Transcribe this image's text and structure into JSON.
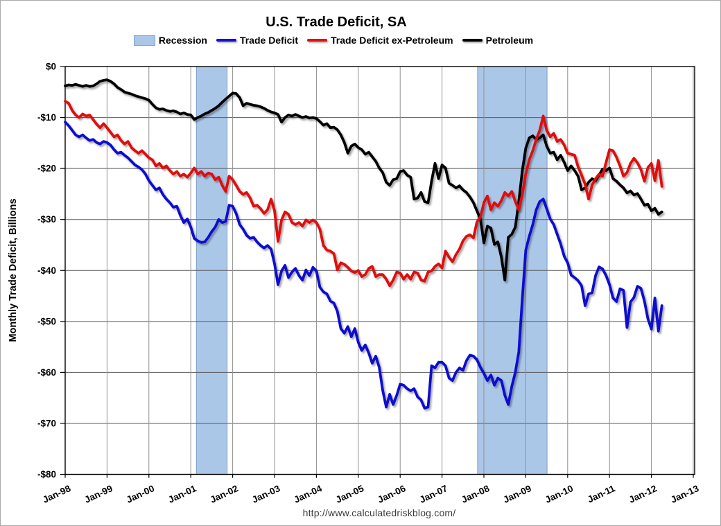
{
  "title": "U.S. Trade Deficit, SA",
  "footer_url": "http://www.calculatedriskblog.com/",
  "legend": {
    "recession": "Recession",
    "trade_deficit": "Trade Deficit",
    "ex_petroleum": "Trade Deficit ex-Petroleum",
    "petroleum": "Petroleum"
  },
  "colors": {
    "trade_deficit": "#1111cf",
    "ex_petroleum": "#e01010",
    "petroleum": "#000000",
    "recession_fill": "#abc7e8",
    "recession_edge": "#7d9ec7",
    "gridline_h": "#5a5a5a",
    "gridline_v": "#8f8f8f",
    "axis": "#000000",
    "footer_text": "#3a3a3a"
  },
  "chart_data": {
    "type": "line",
    "title": "U.S. Trade Deficit, SA",
    "xlabel": "",
    "ylabel": "Monthly Trade Deficit, Billions",
    "ylim": [
      -80,
      0
    ],
    "grid": true,
    "legend_position": "top",
    "x_unit": "monthly, Jan-1998 through Apr-2012 (index 0 = Jan-1998)",
    "x_axis_span_months": [
      0,
      180
    ],
    "x_tick_labels": [
      "Jan-98",
      "Jan-99",
      "Jan-00",
      "Jan-01",
      "Jan-02",
      "Jan-03",
      "Jan-04",
      "Jan-05",
      "Jan-06",
      "Jan-07",
      "Jan-08",
      "Jan-09",
      "Jan-10",
      "Jan-11",
      "Jan-12",
      "Jan-13"
    ],
    "y_tick_labels": [
      "$0",
      "-$10",
      "-$20",
      "-$30",
      "-$40",
      "-$50",
      "-$60",
      "-$70",
      "-$80"
    ],
    "recessions": [
      {
        "start_month": 37.6,
        "end_month": 46.4
      },
      {
        "start_month": 118.2,
        "end_month": 138.1
      }
    ],
    "series": [
      {
        "name": "Trade Deficit",
        "color": "#1111cf",
        "values": [
          -10.9,
          -11.6,
          -12.5,
          -13.4,
          -13.8,
          -13.4,
          -14.0,
          -14.5,
          -14.3,
          -14.9,
          -15.2,
          -14.7,
          -14.9,
          -15.4,
          -16.3,
          -17.0,
          -16.8,
          -17.4,
          -17.9,
          -18.6,
          -19.3,
          -19.7,
          -20.2,
          -21.1,
          -22.4,
          -23.3,
          -24.2,
          -23.8,
          -25.1,
          -26.0,
          -26.7,
          -27.6,
          -27.4,
          -29.2,
          -30.6,
          -29.9,
          -31.5,
          -33.7,
          -34.2,
          -34.5,
          -34.4,
          -33.5,
          -32.4,
          -31.5,
          -30.0,
          -30.6,
          -30.4,
          -27.2,
          -27.4,
          -28.8,
          -31.0,
          -31.9,
          -33.1,
          -33.7,
          -33.5,
          -34.4,
          -35.1,
          -35.6,
          -35.1,
          -35.8,
          -38.7,
          -42.8,
          -40.1,
          -39.0,
          -41.4,
          -40.3,
          -39.6,
          -41.0,
          -41.9,
          -39.9,
          -41.0,
          -39.4,
          -40.1,
          -43.3,
          -44.2,
          -44.6,
          -46.0,
          -46.4,
          -48.0,
          -51.4,
          -52.3,
          -51.0,
          -53.0,
          -51.4,
          -54.1,
          -55.7,
          -54.6,
          -56.2,
          -58.2,
          -56.8,
          -59.0,
          -63.5,
          -66.8,
          -64.3,
          -66.3,
          -64.5,
          -62.3,
          -62.5,
          -63.2,
          -63.6,
          -63.2,
          -64.8,
          -65.4,
          -67.0,
          -66.8,
          -58.7,
          -59.1,
          -58.0,
          -58.0,
          -58.7,
          -61.1,
          -61.6,
          -60.0,
          -59.1,
          -59.6,
          -57.7,
          -56.6,
          -56.8,
          -57.5,
          -59.0,
          -60.2,
          -61.6,
          -60.5,
          -62.5,
          -61.1,
          -61.6,
          -64.5,
          -66.3,
          -62.7,
          -60.0,
          -56.0,
          -45.5,
          -36.0,
          -33.3,
          -31.0,
          -28.1,
          -26.5,
          -26.0,
          -27.9,
          -29.9,
          -31.0,
          -32.9,
          -34.8,
          -37.2,
          -38.5,
          -40.9,
          -41.4,
          -42.0,
          -43.0,
          -46.9,
          -44.6,
          -44.4,
          -41.0,
          -39.3,
          -39.7,
          -41.0,
          -42.8,
          -45.4,
          -46.1,
          -43.6,
          -43.9,
          -51.2,
          -46.2,
          -45.3,
          -43.1,
          -43.5,
          -46.0,
          -49.5,
          -51.5,
          -45.4,
          -51.9,
          -46.9
        ]
      },
      {
        "name": "Trade Deficit ex-Petroleum",
        "color": "#e01010",
        "values": [
          -6.8,
          -7.2,
          -8.6,
          -9.5,
          -10.0,
          -9.3,
          -9.7,
          -9.5,
          -10.4,
          -11.3,
          -12.0,
          -11.2,
          -12.0,
          -12.9,
          -13.8,
          -13.4,
          -14.5,
          -15.2,
          -14.7,
          -15.9,
          -16.5,
          -17.0,
          -16.5,
          -17.2,
          -17.9,
          -18.3,
          -19.5,
          -19.0,
          -19.9,
          -19.5,
          -20.4,
          -21.1,
          -20.6,
          -21.5,
          -21.1,
          -21.7,
          -20.9,
          -19.9,
          -21.1,
          -20.6,
          -21.5,
          -20.9,
          -21.1,
          -22.2,
          -21.7,
          -23.3,
          -24.5,
          -21.5,
          -22.2,
          -23.3,
          -24.5,
          -25.1,
          -24.7,
          -25.8,
          -27.4,
          -27.2,
          -27.9,
          -28.8,
          -28.1,
          -26.0,
          -28.3,
          -34.3,
          -30.1,
          -28.5,
          -29.0,
          -30.6,
          -31.0,
          -30.6,
          -31.3,
          -30.1,
          -30.6,
          -30.1,
          -30.6,
          -31.9,
          -35.1,
          -36.0,
          -36.2,
          -36.7,
          -39.9,
          -38.5,
          -38.8,
          -39.4,
          -40.1,
          -40.4,
          -40.0,
          -41.2,
          -40.8,
          -39.6,
          -39.2,
          -41.2,
          -40.8,
          -40.8,
          -41.7,
          -43.0,
          -41.9,
          -40.3,
          -40.5,
          -41.7,
          -40.8,
          -41.7,
          -40.3,
          -40.5,
          -41.9,
          -42.1,
          -40.3,
          -40.1,
          -39.2,
          -38.7,
          -39.5,
          -36.2,
          -37.4,
          -38.3,
          -36.9,
          -35.8,
          -34.2,
          -33.3,
          -33.0,
          -33.6,
          -30.5,
          -29.5,
          -26.7,
          -25.4,
          -28.1,
          -26.7,
          -27.4,
          -26.3,
          -24.7,
          -25.4,
          -24.5,
          -26.5,
          -28.1,
          -25.1,
          -21.1,
          -18.3,
          -16.5,
          -14.3,
          -12.5,
          -9.7,
          -12.5,
          -13.8,
          -13.1,
          -14.7,
          -14.3,
          -15.4,
          -17.0,
          -17.2,
          -17.4,
          -19.7,
          -21.3,
          -23.1,
          -26.0,
          -23.3,
          -22.0,
          -21.1,
          -21.5,
          -18.8,
          -16.3,
          -16.5,
          -17.8,
          -19.5,
          -21.5,
          -20.8,
          -19.0,
          -18.0,
          -18.9,
          -20.2,
          -22.5,
          -19.8,
          -19.0,
          -22.4,
          -18.4,
          -23.5
        ]
      },
      {
        "name": "Petroleum",
        "color": "#000000",
        "values": [
          -3.8,
          -3.6,
          -3.7,
          -3.5,
          -3.7,
          -3.9,
          -3.7,
          -3.9,
          -3.8,
          -3.4,
          -2.9,
          -2.7,
          -2.6,
          -2.9,
          -3.4,
          -4.1,
          -4.5,
          -5.0,
          -5.2,
          -5.4,
          -5.7,
          -5.9,
          -6.1,
          -6.3,
          -6.6,
          -7.4,
          -8.1,
          -8.4,
          -8.3,
          -8.6,
          -8.8,
          -8.7,
          -8.9,
          -9.3,
          -9.1,
          -9.4,
          -9.5,
          -10.4,
          -10.0,
          -9.7,
          -9.3,
          -9.0,
          -8.6,
          -8.2,
          -7.7,
          -7.0,
          -6.4,
          -5.8,
          -5.2,
          -5.3,
          -6.1,
          -7.7,
          -7.2,
          -7.4,
          -7.6,
          -7.7,
          -7.9,
          -8.2,
          -8.6,
          -8.9,
          -9.1,
          -9.4,
          -10.9,
          -10.0,
          -9.5,
          -9.7,
          -9.4,
          -9.7,
          -10.0,
          -9.8,
          -10.1,
          -10.0,
          -10.2,
          -10.8,
          -11.5,
          -11.2,
          -12.0,
          -11.9,
          -12.4,
          -13.4,
          -14.9,
          -17.0,
          -15.6,
          -15.2,
          -15.9,
          -16.3,
          -17.2,
          -16.8,
          -17.7,
          -18.6,
          -19.9,
          -20.8,
          -22.7,
          -23.3,
          -22.2,
          -22.0,
          -20.6,
          -20.4,
          -21.3,
          -21.7,
          -26.0,
          -25.8,
          -24.7,
          -26.5,
          -26.7,
          -22.5,
          -19.0,
          -22.0,
          -19.3,
          -19.9,
          -22.9,
          -23.3,
          -23.8,
          -23.4,
          -24.2,
          -24.7,
          -25.6,
          -26.7,
          -28.3,
          -29.9,
          -34.6,
          -31.3,
          -31.7,
          -34.9,
          -34.4,
          -37.4,
          -41.9,
          -33.5,
          -32.9,
          -31.5,
          -26.5,
          -20.4,
          -16.0,
          -14.0,
          -13.6,
          -14.3,
          -14.0,
          -13.4,
          -15.6,
          -17.0,
          -16.8,
          -18.3,
          -17.4,
          -18.8,
          -20.4,
          -19.5,
          -20.4,
          -21.5,
          -24.2,
          -23.8,
          -22.7,
          -22.0,
          -22.4,
          -21.3,
          -20.1,
          -20.4,
          -19.9,
          -22.0,
          -22.5,
          -23.2,
          -23.8,
          -24.8,
          -24.4,
          -25.2,
          -24.9,
          -26.0,
          -27.2,
          -27.0,
          -28.3,
          -27.8,
          -29.0,
          -28.5
        ]
      }
    ]
  }
}
